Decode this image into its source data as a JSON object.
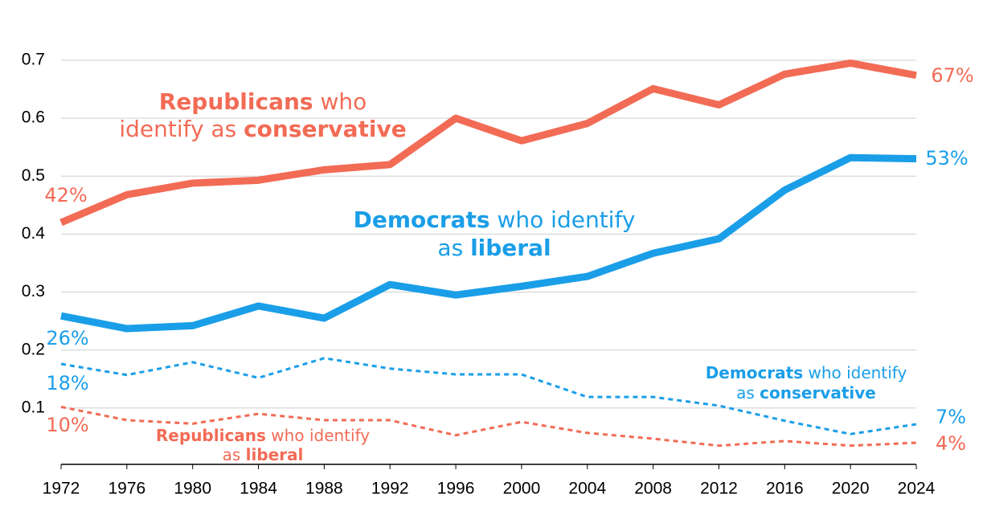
{
  "chart_data": {
    "type": "line",
    "x": [
      1972,
      1976,
      1980,
      1984,
      1988,
      1992,
      1996,
      2000,
      2004,
      2008,
      2012,
      2016,
      2020,
      2024
    ],
    "xlim": [
      1972,
      2024
    ],
    "xticks": [
      1972,
      1976,
      1980,
      1984,
      1988,
      1992,
      1996,
      2000,
      2004,
      2008,
      2012,
      2016,
      2020,
      2024
    ],
    "ylim": [
      0,
      0.7
    ],
    "yticks": [
      0.1,
      0.2,
      0.3,
      0.4,
      0.5,
      0.6,
      0.7
    ],
    "grid": true,
    "series": [
      {
        "color": "#f26b55",
        "style": "solid",
        "label": [
          [
            {
              "text": "Republicans",
              "bold": true
            },
            {
              "text": " who",
              "bold": false
            }
          ],
          [
            {
              "text": "identify as ",
              "bold": false
            },
            {
              "text": "conservative",
              "bold": true
            }
          ]
        ],
        "values": [
          0.42,
          0.468,
          0.488,
          0.493,
          0.511,
          0.52,
          0.6,
          0.561,
          0.591,
          0.651,
          0.623,
          0.676,
          0.695,
          0.674
        ],
        "value_labels": [
          "42%",
          null,
          null,
          null,
          null,
          null,
          null,
          null,
          null,
          null,
          null,
          null,
          null,
          "67%"
        ]
      },
      {
        "color": "#1a9ee8",
        "style": "solid",
        "label": [
          [
            {
              "text": "Democrats",
              "bold": true
            },
            {
              "text": " who identify",
              "bold": false
            }
          ],
          [
            {
              "text": "as ",
              "bold": false
            },
            {
              "text": "liberal",
              "bold": true
            }
          ]
        ],
        "values": [
          0.259,
          0.237,
          0.242,
          0.276,
          0.255,
          0.313,
          0.295,
          0.31,
          0.327,
          0.367,
          0.392,
          0.476,
          0.532,
          0.53
        ],
        "value_labels": [
          "26%",
          null,
          null,
          null,
          null,
          null,
          null,
          null,
          null,
          null,
          null,
          null,
          null,
          "53%"
        ]
      },
      {
        "color": "#1a9ee8",
        "style": "dashed",
        "label": [
          [
            {
              "text": "Democrats",
              "bold": true
            },
            {
              "text": " who identify",
              "bold": false
            }
          ],
          [
            {
              "text": "as ",
              "bold": false
            },
            {
              "text": "conservative",
              "bold": true
            }
          ]
        ],
        "values": [
          0.176,
          0.157,
          0.179,
          0.152,
          0.186,
          0.168,
          0.158,
          0.158,
          0.119,
          0.119,
          0.104,
          0.078,
          0.055,
          0.072
        ],
        "value_labels": [
          "18%",
          null,
          null,
          null,
          null,
          null,
          null,
          null,
          null,
          null,
          null,
          null,
          null,
          "7%"
        ]
      },
      {
        "color": "#f26b55",
        "style": "dashed",
        "label": [
          [
            {
              "text": "Republicans",
              "bold": true
            },
            {
              "text": " who identify",
              "bold": false
            }
          ],
          [
            {
              "text": "as ",
              "bold": false
            },
            {
              "text": "liberal",
              "bold": true
            }
          ]
        ],
        "values": [
          0.102,
          0.079,
          0.073,
          0.09,
          0.079,
          0.079,
          0.053,
          0.076,
          0.057,
          0.047,
          0.035,
          0.043,
          0.035,
          0.04
        ],
        "value_labels": [
          "10%",
          null,
          null,
          null,
          null,
          null,
          null,
          null,
          null,
          null,
          null,
          null,
          null,
          "4%"
        ]
      }
    ]
  }
}
